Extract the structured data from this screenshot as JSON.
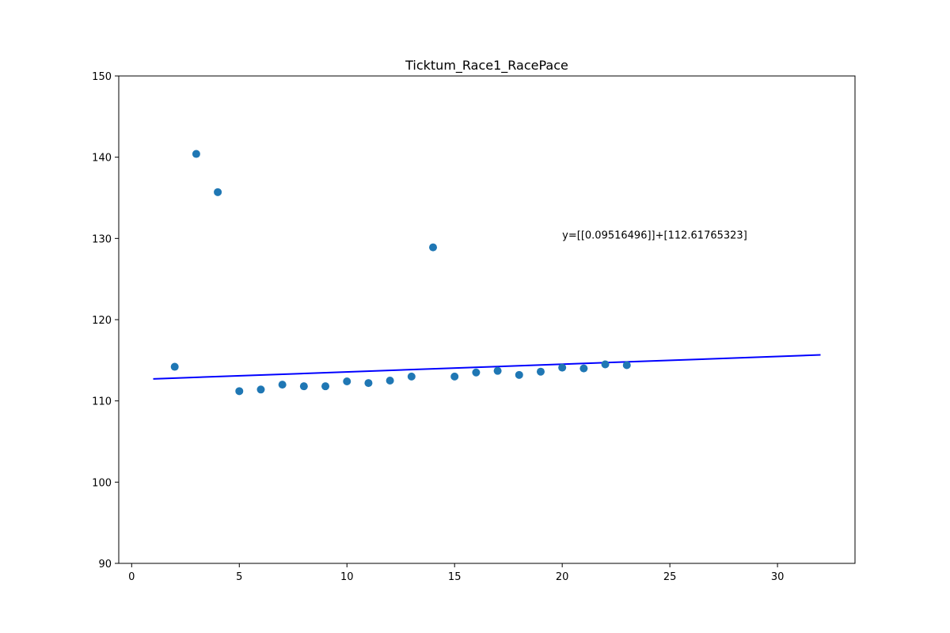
{
  "chart_data": {
    "type": "scatter",
    "title": "Ticktum_Race1_RacePace",
    "xlabel": "",
    "ylabel": "",
    "xlim": [
      -0.6,
      33.6
    ],
    "ylim": [
      90,
      150
    ],
    "xticks": [
      0,
      5,
      10,
      15,
      20,
      25,
      30
    ],
    "yticks": [
      90,
      100,
      110,
      120,
      130,
      140,
      150
    ],
    "grid": false,
    "series": [
      {
        "kind": "scatter",
        "color": "#1f77b4",
        "x": [
          2,
          3,
          4,
          5,
          6,
          7,
          8,
          9,
          10,
          11,
          12,
          13,
          14,
          15,
          16,
          17,
          18,
          19,
          20,
          21,
          22,
          23
        ],
        "y": [
          114.2,
          140.4,
          135.7,
          111.2,
          111.4,
          112.0,
          111.8,
          111.8,
          112.4,
          112.2,
          112.5,
          113.0,
          128.9,
          113.0,
          113.5,
          113.7,
          113.2,
          113.6,
          114.1,
          114.0,
          114.5,
          114.4
        ]
      },
      {
        "kind": "line",
        "color": "#0000ff",
        "x": [
          1,
          32
        ],
        "y": [
          112.71,
          115.66
        ]
      }
    ],
    "annotations": [
      {
        "text": "y=[[0.09516496]]+[112.61765323]",
        "x": 20,
        "y": 130
      }
    ]
  }
}
